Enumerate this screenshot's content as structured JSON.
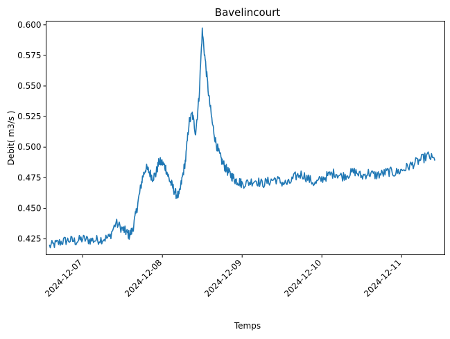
{
  "chart_data": {
    "type": "line",
    "title": "Bavelincourt",
    "xlabel": "Temps",
    "ylabel": "Debit( m3/s )",
    "xlim": [
      "2024-12-06T13:00",
      "2024-12-11T13:00"
    ],
    "ylim": [
      0.412,
      0.603
    ],
    "x_ticks": [
      "2024-12-07",
      "2024-12-08",
      "2024-12-09",
      "2024-12-10",
      "2024-12-11"
    ],
    "y_ticks": [
      "0.425",
      "0.450",
      "0.475",
      "0.500",
      "0.525",
      "0.550",
      "0.575",
      "0.600"
    ],
    "grid": false,
    "series": [
      {
        "color": "#1f77b4",
        "x": [
          "2024-12-06T14:00",
          "2024-12-06T16:00",
          "2024-12-06T18:00",
          "2024-12-06T20:00",
          "2024-12-06T22:00",
          "2024-12-07T00:00",
          "2024-12-07T02:00",
          "2024-12-07T04:00",
          "2024-12-07T06:00",
          "2024-12-07T08:00",
          "2024-12-07T10:00",
          "2024-12-07T12:00",
          "2024-12-07T13:00",
          "2024-12-07T14:00",
          "2024-12-07T15:00",
          "2024-12-07T16:00",
          "2024-12-07T17:00",
          "2024-12-07T18:00",
          "2024-12-07T19:00",
          "2024-12-07T20:00",
          "2024-12-07T21:00",
          "2024-12-07T22:00",
          "2024-12-07T23:00",
          "2024-12-08T00:00",
          "2024-12-08T01:00",
          "2024-12-08T02:00",
          "2024-12-08T03:00",
          "2024-12-08T04:00",
          "2024-12-08T05:00",
          "2024-12-08T06:00",
          "2024-12-08T07:00",
          "2024-12-08T08:00",
          "2024-12-08T09:00",
          "2024-12-08T10:00",
          "2024-12-08T11:00",
          "2024-12-08T12:00",
          "2024-12-08T13:00",
          "2024-12-08T14:00",
          "2024-12-08T15:00",
          "2024-12-08T16:00",
          "2024-12-08T17:00",
          "2024-12-08T18:00",
          "2024-12-08T19:00",
          "2024-12-08T20:00",
          "2024-12-08T21:00",
          "2024-12-08T22:00",
          "2024-12-08T23:00",
          "2024-12-09T00:00",
          "2024-12-09T02:00",
          "2024-12-09T04:00",
          "2024-12-09T06:00",
          "2024-12-09T08:00",
          "2024-12-09T10:00",
          "2024-12-09T12:00",
          "2024-12-09T14:00",
          "2024-12-09T16:00",
          "2024-12-09T18:00",
          "2024-12-09T20:00",
          "2024-12-09T22:00",
          "2024-12-10T00:00",
          "2024-12-10T02:00",
          "2024-12-10T04:00",
          "2024-12-10T06:00",
          "2024-12-10T08:00",
          "2024-12-10T10:00",
          "2024-12-10T12:00",
          "2024-12-10T14:00",
          "2024-12-10T16:00",
          "2024-12-10T18:00",
          "2024-12-10T20:00",
          "2024-12-10T22:00",
          "2024-12-11T00:00",
          "2024-12-11T02:00",
          "2024-12-11T04:00",
          "2024-12-11T06:00",
          "2024-12-11T08:00",
          "2024-12-11T10:00"
        ],
        "y": [
          0.419,
          0.421,
          0.423,
          0.424,
          0.423,
          0.425,
          0.424,
          0.424,
          0.425,
          0.426,
          0.438,
          0.433,
          0.431,
          0.428,
          0.432,
          0.445,
          0.46,
          0.475,
          0.483,
          0.48,
          0.475,
          0.478,
          0.488,
          0.487,
          0.483,
          0.474,
          0.468,
          0.462,
          0.46,
          0.475,
          0.49,
          0.52,
          0.527,
          0.512,
          0.54,
          0.595,
          0.568,
          0.541,
          0.52,
          0.505,
          0.495,
          0.488,
          0.483,
          0.479,
          0.476,
          0.473,
          0.472,
          0.47,
          0.471,
          0.473,
          0.47,
          0.472,
          0.474,
          0.471,
          0.47,
          0.476,
          0.478,
          0.474,
          0.47,
          0.474,
          0.477,
          0.479,
          0.476,
          0.478,
          0.48,
          0.476,
          0.479,
          0.477,
          0.478,
          0.48,
          0.479,
          0.481,
          0.484,
          0.487,
          0.49,
          0.493,
          0.489
        ]
      }
    ]
  }
}
